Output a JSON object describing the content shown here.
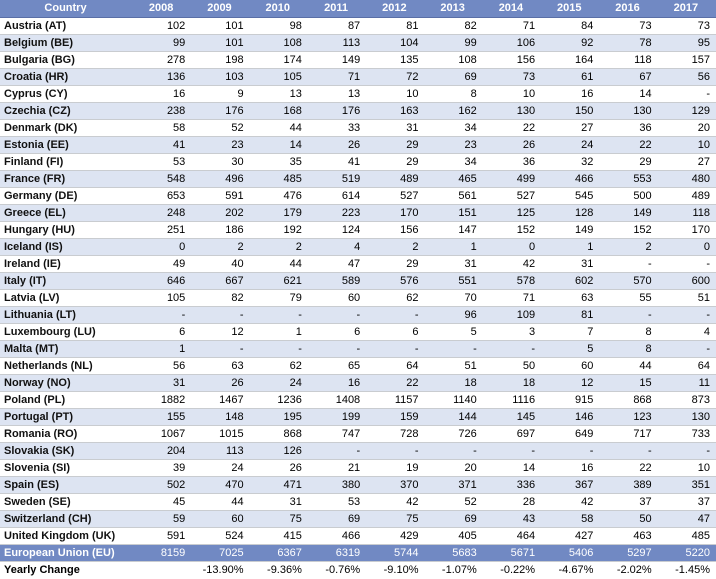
{
  "chart_data": {
    "type": "table",
    "columns": [
      "Country",
      "2008",
      "2009",
      "2010",
      "2011",
      "2012",
      "2013",
      "2014",
      "2015",
      "2016",
      "2017"
    ],
    "rows": [
      [
        "Austria (AT)",
        "102",
        "101",
        "98",
        "87",
        "81",
        "82",
        "71",
        "84",
        "73",
        "73"
      ],
      [
        "Belgium (BE)",
        "99",
        "101",
        "108",
        "113",
        "104",
        "99",
        "106",
        "92",
        "78",
        "95"
      ],
      [
        "Bulgaria (BG)",
        "278",
        "198",
        "174",
        "149",
        "135",
        "108",
        "156",
        "164",
        "118",
        "157"
      ],
      [
        "Croatia (HR)",
        "136",
        "103",
        "105",
        "71",
        "72",
        "69",
        "73",
        "61",
        "67",
        "56"
      ],
      [
        "Cyprus (CY)",
        "16",
        "9",
        "13",
        "13",
        "10",
        "8",
        "10",
        "16",
        "14",
        "-"
      ],
      [
        "Czechia (CZ)",
        "238",
        "176",
        "168",
        "176",
        "163",
        "162",
        "130",
        "150",
        "130",
        "129"
      ],
      [
        "Denmark (DK)",
        "58",
        "52",
        "44",
        "33",
        "31",
        "34",
        "22",
        "27",
        "36",
        "20"
      ],
      [
        "Estonia (EE)",
        "41",
        "23",
        "14",
        "26",
        "29",
        "23",
        "26",
        "24",
        "22",
        "10"
      ],
      [
        "Finland (FI)",
        "53",
        "30",
        "35",
        "41",
        "29",
        "34",
        "36",
        "32",
        "29",
        "27"
      ],
      [
        "France (FR)",
        "548",
        "496",
        "485",
        "519",
        "489",
        "465",
        "499",
        "466",
        "553",
        "480"
      ],
      [
        "Germany (DE)",
        "653",
        "591",
        "476",
        "614",
        "527",
        "561",
        "527",
        "545",
        "500",
        "489"
      ],
      [
        "Greece (EL)",
        "248",
        "202",
        "179",
        "223",
        "170",
        "151",
        "125",
        "128",
        "149",
        "118"
      ],
      [
        "Hungary (HU)",
        "251",
        "186",
        "192",
        "124",
        "156",
        "147",
        "152",
        "149",
        "152",
        "170"
      ],
      [
        "Iceland (IS)",
        "0",
        "2",
        "2",
        "4",
        "2",
        "1",
        "0",
        "1",
        "2",
        "0"
      ],
      [
        "Ireland (IE)",
        "49",
        "40",
        "44",
        "47",
        "29",
        "31",
        "42",
        "31",
        "-",
        "-"
      ],
      [
        "Italy (IT)",
        "646",
        "667",
        "621",
        "589",
        "576",
        "551",
        "578",
        "602",
        "570",
        "600"
      ],
      [
        "Latvia (LV)",
        "105",
        "82",
        "79",
        "60",
        "62",
        "70",
        "71",
        "63",
        "55",
        "51"
      ],
      [
        "Lithuania (LT)",
        "-",
        "-",
        "-",
        "-",
        "-",
        "96",
        "109",
        "81",
        "-",
        "-"
      ],
      [
        "Luxembourg (LU)",
        "6",
        "12",
        "1",
        "6",
        "6",
        "5",
        "3",
        "7",
        "8",
        "4"
      ],
      [
        "Malta (MT)",
        "1",
        "-",
        "-",
        "-",
        "-",
        "-",
        "-",
        "5",
        "8",
        "-"
      ],
      [
        "Netherlands (NL)",
        "56",
        "63",
        "62",
        "65",
        "64",
        "51",
        "50",
        "60",
        "44",
        "64"
      ],
      [
        "Norway (NO)",
        "31",
        "26",
        "24",
        "16",
        "22",
        "18",
        "18",
        "12",
        "15",
        "11"
      ],
      [
        "Poland (PL)",
        "1882",
        "1467",
        "1236",
        "1408",
        "1157",
        "1140",
        "1116",
        "915",
        "868",
        "873"
      ],
      [
        "Portugal (PT)",
        "155",
        "148",
        "195",
        "199",
        "159",
        "144",
        "145",
        "146",
        "123",
        "130"
      ],
      [
        "Romania (RO)",
        "1067",
        "1015",
        "868",
        "747",
        "728",
        "726",
        "697",
        "649",
        "717",
        "733"
      ],
      [
        "Slovakia (SK)",
        "204",
        "113",
        "126",
        "-",
        "-",
        "-",
        "-",
        "-",
        "-",
        "-"
      ],
      [
        "Slovenia (SI)",
        "39",
        "24",
        "26",
        "21",
        "19",
        "20",
        "14",
        "16",
        "22",
        "10"
      ],
      [
        "Spain (ES)",
        "502",
        "470",
        "471",
        "380",
        "370",
        "371",
        "336",
        "367",
        "389",
        "351"
      ],
      [
        "Sweden (SE)",
        "45",
        "44",
        "31",
        "53",
        "42",
        "52",
        "28",
        "42",
        "37",
        "37"
      ],
      [
        "Switzerland (CH)",
        "59",
        "60",
        "75",
        "69",
        "75",
        "69",
        "43",
        "58",
        "50",
        "47"
      ],
      [
        "United Kingdom (UK)",
        "591",
        "524",
        "415",
        "466",
        "429",
        "405",
        "464",
        "427",
        "463",
        "485"
      ]
    ],
    "total_row": [
      "European Union (EU)",
      "8159",
      "7025",
      "6367",
      "6319",
      "5744",
      "5683",
      "5671",
      "5406",
      "5297",
      "5220"
    ],
    "footer_row": [
      "Yearly Change",
      "",
      "-13.90%",
      "-9.36%",
      "-0.76%",
      "-9.10%",
      "-1.07%",
      "-0.22%",
      "-4.67%",
      "-2.02%",
      "-1.45%"
    ]
  },
  "colors": {
    "header_bg": "#7189c3",
    "alt_row_bg": "#dde4f2",
    "total_row_bg": "#7189c3"
  }
}
